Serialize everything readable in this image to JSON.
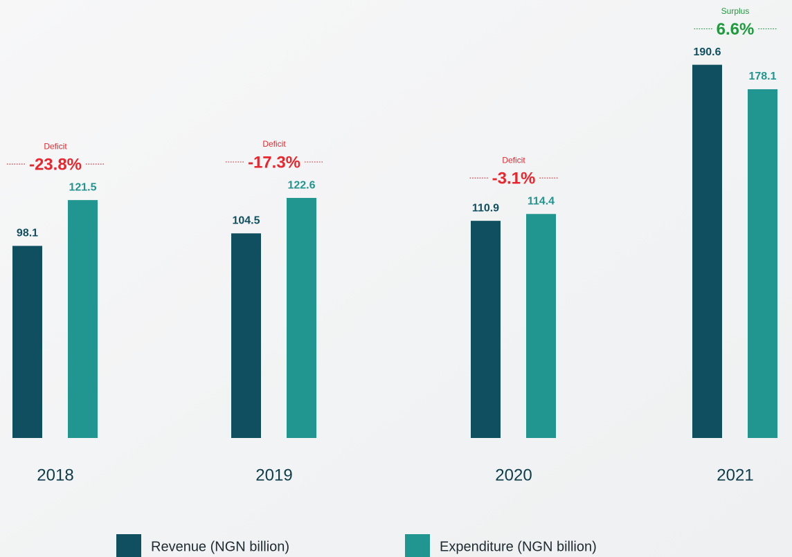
{
  "chart_data": {
    "type": "bar",
    "categories": [
      "2018",
      "2019",
      "2020",
      "2021"
    ],
    "series": [
      {
        "name": "Revenue (NGN billion)",
        "color": "#0f4f60",
        "values": [
          98.1,
          104.5,
          110.9,
          190.6
        ]
      },
      {
        "name": "Expenditure (NGN billion)",
        "color": "#21958f",
        "values": [
          121.5,
          122.6,
          114.4,
          178.1
        ]
      }
    ],
    "balance": {
      "labels": [
        "Deficit",
        "Deficit",
        "Deficit",
        "Surplus"
      ],
      "values": [
        -23.8,
        -17.3,
        -3.1,
        6.6
      ],
      "value_labels": [
        "-23.8%",
        "-17.3%",
        "-3.1%",
        "6.6%"
      ],
      "colors": [
        "#e8262e",
        "#e8262e",
        "#e8262e",
        "#1f9a3c"
      ]
    },
    "ylim": [
      0,
      200
    ]
  }
}
